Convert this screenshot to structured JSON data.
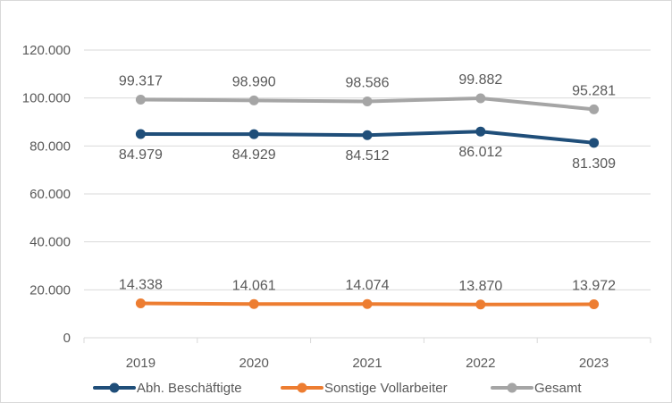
{
  "chart_data": {
    "type": "line",
    "title": "",
    "xlabel": "",
    "ylabel": "",
    "categories": [
      "2019",
      "2020",
      "2021",
      "2022",
      "2023"
    ],
    "ylim": [
      0,
      120000
    ],
    "yticks": [
      0,
      20000,
      40000,
      60000,
      80000,
      100000,
      120000
    ],
    "ytick_labels": [
      "0",
      "20.000",
      "40.000",
      "60.000",
      "80.000",
      "100.000",
      "120.000"
    ],
    "grid": true,
    "legend_position": "bottom",
    "series": [
      {
        "name": "Abh. Beschäftigte",
        "color": "#1f4e79",
        "values": [
          84979,
          84929,
          84512,
          86012,
          81309
        ],
        "labels": [
          "84.979",
          "84.929",
          "84.512",
          "86.012",
          "81.309"
        ],
        "label_position": "below"
      },
      {
        "name": "Sonstige Vollarbeiter",
        "color": "#ed7d31",
        "values": [
          14338,
          14061,
          14074,
          13870,
          13972
        ],
        "labels": [
          "14.338",
          "14.061",
          "14.074",
          "13.870",
          "13.972"
        ],
        "label_position": "above"
      },
      {
        "name": "Gesamt",
        "color": "#a5a5a5",
        "values": [
          99317,
          98990,
          98586,
          99882,
          95281
        ],
        "labels": [
          "99.317",
          "98.990",
          "98.586",
          "99.882",
          "95.281"
        ],
        "label_position": "above"
      }
    ]
  }
}
